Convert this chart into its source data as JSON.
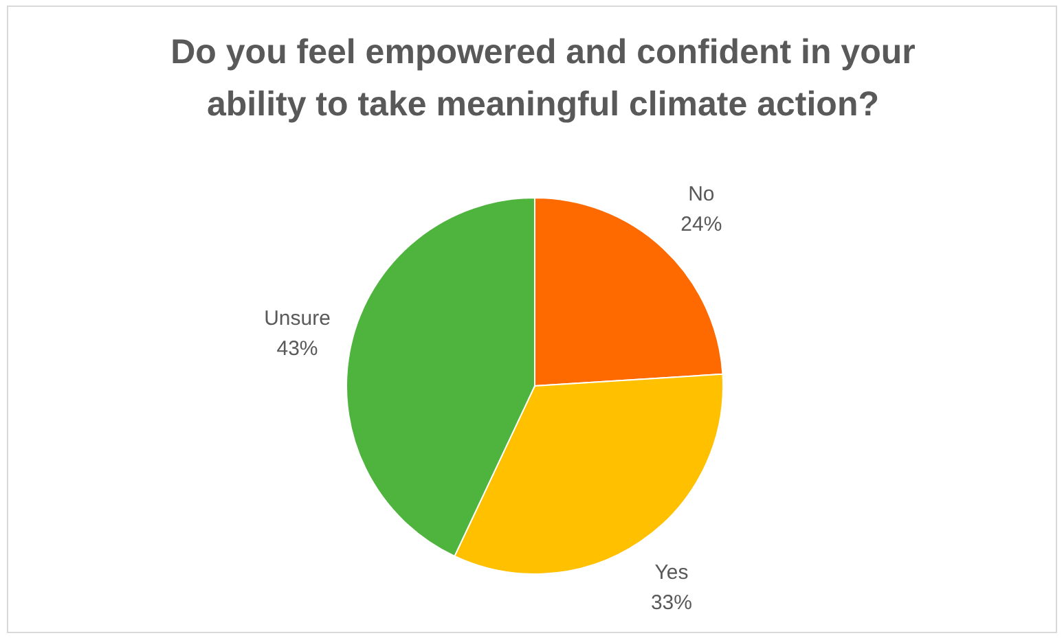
{
  "chart_data": {
    "type": "pie",
    "title": "Do you feel empowered and confident in your ability to take meaningful climate action?",
    "categories": [
      "No",
      "Yes",
      "Unsure"
    ],
    "values": [
      24,
      33,
      43
    ],
    "colors": [
      "#fe6a00",
      "#ffc000",
      "#4fb43d"
    ],
    "value_labels": [
      "24%",
      "33%",
      "43%"
    ]
  }
}
